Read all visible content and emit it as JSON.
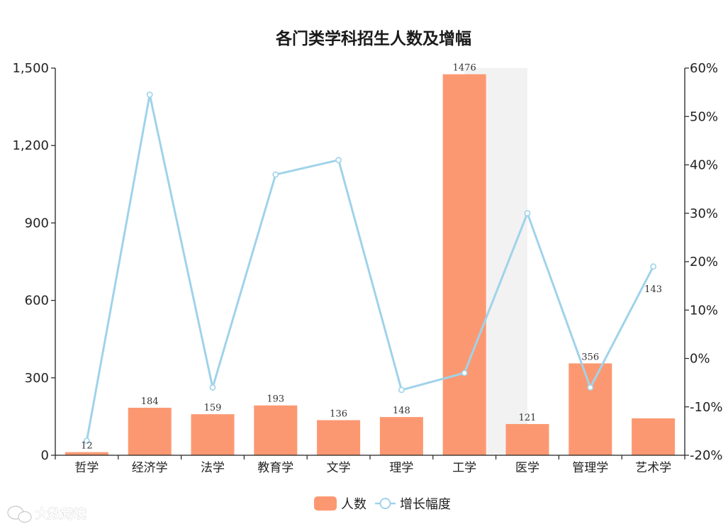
{
  "colors": {
    "bar": "#fc9871",
    "line": "#9fd3ea",
    "axis": "#222222",
    "band": "#f2f2f2"
  },
  "watermark": {
    "icon": "wechat-logo-icon",
    "text": "大数跨境"
  },
  "chart_data": {
    "type": "bar",
    "title": "各门类学科招生人数及增幅",
    "categories": [
      "哲学",
      "经济学",
      "法学",
      "教育学",
      "文学",
      "理学",
      "工学",
      "医学",
      "管理学",
      "艺术学"
    ],
    "series": [
      {
        "name": "人数",
        "type": "bar",
        "axis": "left",
        "values": [
          12,
          184,
          159,
          193,
          136,
          148,
          1476,
          121,
          356,
          143
        ],
        "labels": [
          "12",
          "184",
          "159",
          "193",
          "136",
          "148",
          "1476",
          "121",
          "356",
          "143"
        ]
      },
      {
        "name": "增长幅度",
        "type": "line",
        "axis": "right",
        "values": [
          -17,
          54.5,
          -6,
          38,
          41,
          -6.5,
          -3,
          30,
          -6,
          19
        ]
      }
    ],
    "y_left": {
      "min": 0,
      "max": 1500,
      "ticks": [
        0,
        300,
        600,
        900,
        1200,
        1500
      ],
      "tick_labels": [
        "0",
        "300",
        "600",
        "900",
        "1,200",
        "1,500"
      ]
    },
    "y_right": {
      "min": -20,
      "max": 60,
      "ticks": [
        -20,
        -10,
        0,
        10,
        20,
        30,
        40,
        50,
        60
      ],
      "tick_labels": [
        "-20%",
        "-10%",
        "0%",
        "10%",
        "20%",
        "30%",
        "40%",
        "50%",
        "60%"
      ]
    },
    "legend": {
      "placement": "bottom-center",
      "items": [
        "人数",
        "增长幅度"
      ]
    },
    "grid": false
  }
}
